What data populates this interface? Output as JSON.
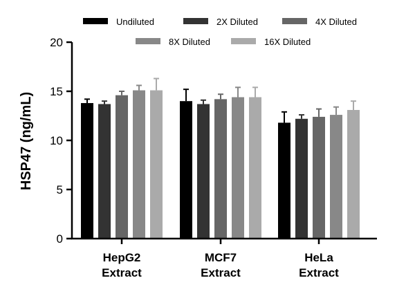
{
  "chart_data": {
    "type": "bar",
    "categories": [
      [
        "HepG2",
        "Extract"
      ],
      [
        "MCF7",
        "Extract"
      ],
      [
        "HeLa",
        "Extract"
      ]
    ],
    "ylabel": "HSP47 (ng/mL)",
    "ylim": [
      0,
      20
    ],
    "yticks": [
      0,
      5,
      10,
      15,
      20
    ],
    "grid": false,
    "legend_position": "top",
    "series": [
      {
        "name": "Undiluted",
        "color": "#000000",
        "values": [
          13.8,
          14.0,
          11.8
        ],
        "errors": [
          0.4,
          1.2,
          1.1
        ]
      },
      {
        "name": "2X Diluted",
        "color": "#333333",
        "values": [
          13.7,
          13.7,
          12.2
        ],
        "errors": [
          0.3,
          0.4,
          0.4
        ]
      },
      {
        "name": "4X Diluted",
        "color": "#666666",
        "values": [
          14.6,
          14.2,
          12.4
        ],
        "errors": [
          0.4,
          0.5,
          0.8
        ]
      },
      {
        "name": "8X Diluted",
        "color": "#888888",
        "values": [
          15.1,
          14.4,
          12.6
        ],
        "errors": [
          0.5,
          1.0,
          0.8
        ]
      },
      {
        "name": "16X Diluted",
        "color": "#aaaaaa",
        "values": [
          15.1,
          14.4,
          13.1
        ],
        "errors": [
          1.2,
          1.0,
          0.9
        ]
      }
    ]
  }
}
